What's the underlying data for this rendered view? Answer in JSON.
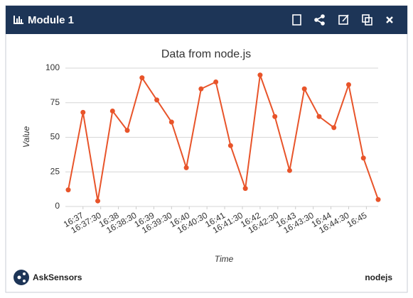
{
  "header": {
    "title": "Module 1"
  },
  "chart_data": {
    "type": "line",
    "title": "Data from node.js",
    "x_label": "Time",
    "y_label": "Value",
    "x": [
      59795,
      59820,
      59845,
      59870,
      59895,
      59920,
      59945,
      59970,
      59995,
      60020,
      60045,
      60070,
      60095,
      60120,
      60145,
      60170,
      60195,
      60220,
      60245,
      60270,
      60295,
      60320
    ],
    "series": [
      {
        "name": "Value",
        "color": "#e8542a",
        "values": [
          12,
          68,
          4,
          69,
          55,
          93,
          77,
          61,
          28,
          85,
          90,
          44,
          13,
          95,
          65,
          26,
          85,
          65,
          57,
          88,
          35,
          5
        ]
      }
    ],
    "xlim": [
      59795,
      60320
    ],
    "xticks": [
      {
        "value": 59820,
        "label": "16:37"
      },
      {
        "value": 59850,
        "label": "16:37:30"
      },
      {
        "value": 59880,
        "label": "16:38"
      },
      {
        "value": 59910,
        "label": "16:38:30"
      },
      {
        "value": 59940,
        "label": "16:39"
      },
      {
        "value": 59970,
        "label": "16:39:30"
      },
      {
        "value": 60000,
        "label": "16:40"
      },
      {
        "value": 60030,
        "label": "16:40:30"
      },
      {
        "value": 60060,
        "label": "16:41"
      },
      {
        "value": 60090,
        "label": "16:41:30"
      },
      {
        "value": 60120,
        "label": "16:42"
      },
      {
        "value": 60150,
        "label": "16:42:30"
      },
      {
        "value": 60180,
        "label": "16:43"
      },
      {
        "value": 60210,
        "label": "16:43:30"
      },
      {
        "value": 60240,
        "label": "16:44"
      },
      {
        "value": 60270,
        "label": "16:44:30"
      },
      {
        "value": 60300,
        "label": "16:45"
      }
    ],
    "ylim": [
      0,
      100
    ],
    "yticks": [
      0,
      25,
      50,
      75,
      100
    ],
    "grid": true
  },
  "footer": {
    "brand": "AskSensors",
    "source": "nodejs"
  }
}
